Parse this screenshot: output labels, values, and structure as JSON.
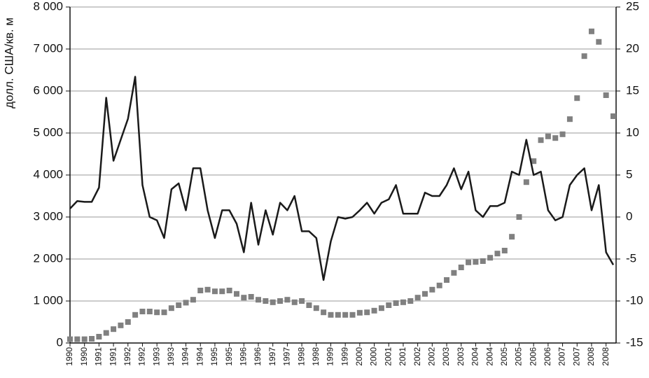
{
  "chart_data": {
    "type": "line",
    "y_label": "долл. США/кв. м",
    "categories": [
      "1990",
      null,
      "1990",
      null,
      "1991",
      null,
      "1991",
      null,
      "1992",
      null,
      "1992",
      null,
      "1993",
      null,
      "1993",
      null,
      "1994",
      null,
      "1994",
      null,
      "1995",
      null,
      "1995",
      null,
      "1996",
      null,
      "1996",
      null,
      "1997",
      null,
      "1997",
      null,
      "1998",
      null,
      "1998",
      null,
      "1999",
      null,
      "1999",
      null,
      "2000",
      null,
      "2000",
      null,
      "2001",
      null,
      "2001",
      null,
      "2002",
      null,
      "2002",
      null,
      "2003",
      null,
      "2003",
      null,
      "2004",
      null,
      "2004",
      null,
      "2005",
      null,
      "2005",
      null,
      "2006",
      null,
      "2006",
      null,
      "2007",
      null,
      "2007",
      null,
      "2008",
      null,
      "2008",
      null
    ],
    "series": [
      {
        "color": "#808080",
        "marker": "square",
        "axis": "y",
        "values": [
          90,
          90,
          90,
          100,
          150,
          240,
          330,
          420,
          500,
          670,
          750,
          750,
          730,
          730,
          830,
          900,
          960,
          1030,
          1250,
          1270,
          1230,
          1230,
          1250,
          1170,
          1080,
          1100,
          1030,
          1000,
          970,
          1000,
          1030,
          970,
          1000,
          900,
          830,
          730,
          670,
          670,
          670,
          670,
          720,
          730,
          770,
          830,
          900,
          950,
          970,
          1000,
          1080,
          1170,
          1270,
          1370,
          1500,
          1670,
          1800,
          1920,
          1930,
          1950,
          2030,
          2130,
          2200,
          2530,
          3000,
          3830,
          4330,
          4830,
          4920,
          4880,
          4970,
          5330,
          5830,
          6830,
          7420,
          7170,
          5900,
          5400
        ]
      },
      {
        "color": "#1a1a1a",
        "marker": "none",
        "axis": "y2",
        "values": [
          1.0,
          1.9,
          1.8,
          1.8,
          3.5,
          14.2,
          6.7,
          9.2,
          11.7,
          16.7,
          3.8,
          0,
          -0.4,
          -2.5,
          3.3,
          4.0,
          0.8,
          5.8,
          5.8,
          0.8,
          -2.5,
          0.8,
          0.8,
          -0.8,
          -4.2,
          1.7,
          -3.3,
          0.8,
          -2.1,
          1.7,
          0.8,
          2.5,
          -1.7,
          -1.7,
          -2.5,
          -7.5,
          -2.9,
          0,
          -0.2,
          0,
          0.8,
          1.7,
          0.4,
          1.7,
          2.1,
          3.8,
          0.4,
          0.4,
          0.4,
          2.9,
          2.5,
          2.5,
          3.8,
          5.8,
          3.3,
          5.4,
          0.8,
          0,
          1.3,
          1.3,
          1.7,
          5.4,
          5.0,
          9.2,
          5.0,
          5.4,
          0.8,
          -0.4,
          0,
          3.8,
          5.0,
          5.8,
          0.8,
          3.8,
          -4.2,
          -5.7
        ]
      }
    ],
    "ylim": [
      0,
      8000
    ],
    "yticks": [
      0,
      {
        "value": 1000,
        "label": "1 000"
      },
      {
        "value": 2000,
        "label": "2 000"
      },
      {
        "value": 3000,
        "label": "3 000"
      },
      {
        "value": 4000,
        "label": "4 000"
      },
      {
        "value": 5000,
        "label": "5 000"
      },
      {
        "value": 6000,
        "label": "6 000"
      },
      {
        "value": 7000,
        "label": "7 000"
      },
      {
        "value": 8000,
        "label": "8 000"
      }
    ],
    "y2lim": [
      -15,
      25
    ],
    "y2ticks": [
      -15,
      -10,
      -5,
      0,
      5,
      10,
      15,
      20,
      25
    ],
    "grid": true
  }
}
